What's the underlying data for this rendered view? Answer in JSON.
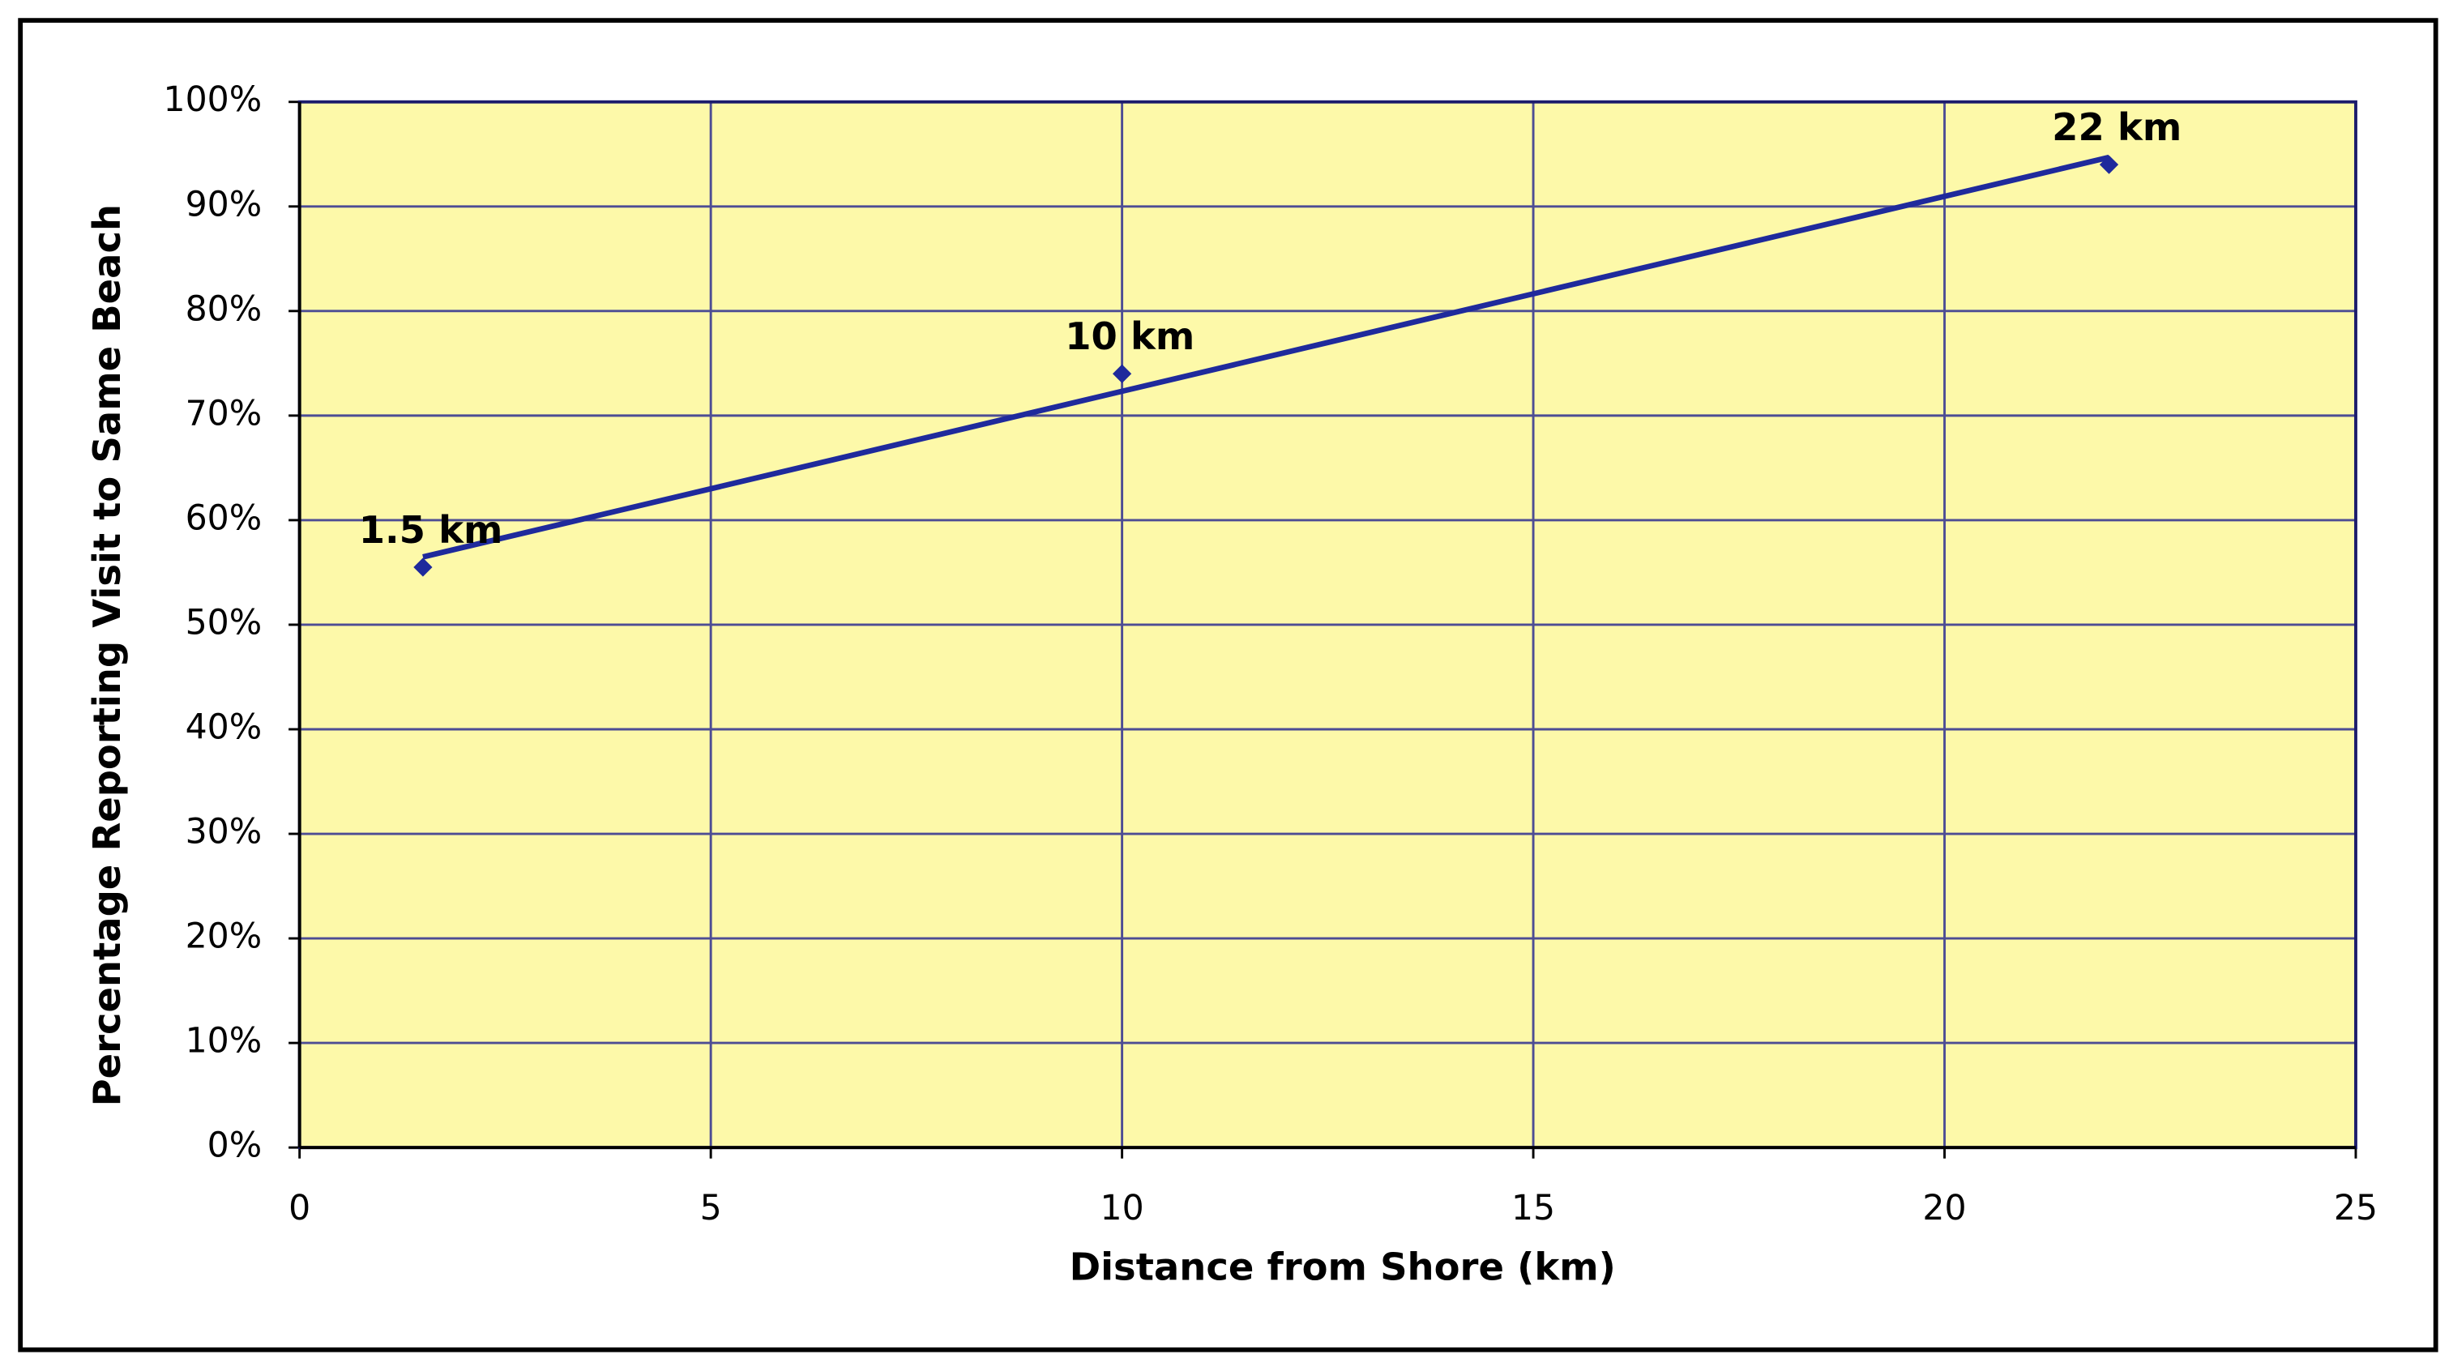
{
  "chart_data": {
    "type": "scatter",
    "x_label": "Distance from Shore (km)",
    "y_label": "Percentage Reporting Visit to Same Beach",
    "series": [
      {
        "color": "#1f2a9c",
        "x": [
          1.5,
          10,
          22
        ],
        "values": [
          55.5,
          74,
          94
        ],
        "x_labels": [
          "1.5 km",
          "10 km",
          "22 km"
        ]
      }
    ],
    "trendline": true,
    "xlim": [
      0,
      25
    ],
    "xticks": [
      0,
      5,
      10,
      15,
      20,
      25
    ],
    "ylim": [
      0,
      100
    ],
    "yticks": [
      {
        "value": 0,
        "label": "0%"
      },
      {
        "value": 10,
        "label": "10%"
      },
      {
        "value": 20,
        "label": "20%"
      },
      {
        "value": 30,
        "label": "30%"
      },
      {
        "value": 40,
        "label": "40%"
      },
      {
        "value": 50,
        "label": "50%"
      },
      {
        "value": 60,
        "label": "60%"
      },
      {
        "value": 70,
        "label": "70%"
      },
      {
        "value": 80,
        "label": "80%"
      },
      {
        "value": 90,
        "label": "90%"
      },
      {
        "value": 100,
        "label": "100%"
      }
    ],
    "grid": true,
    "plot_background": "#fdf9a9",
    "grid_color": "#4d4d94"
  }
}
